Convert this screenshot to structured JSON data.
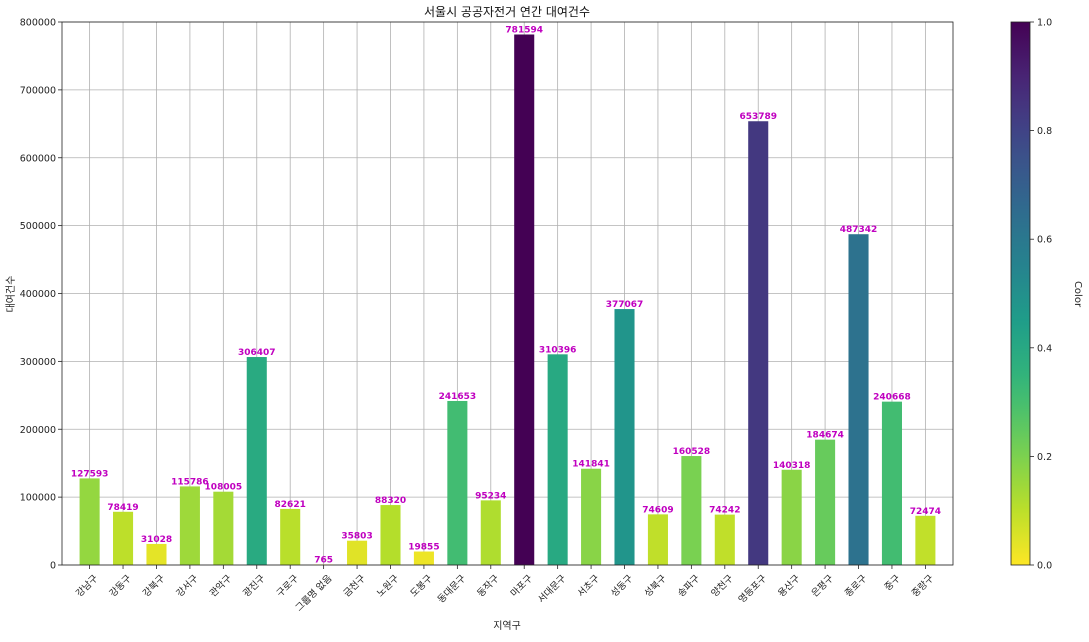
{
  "chart_data": {
    "type": "bar",
    "title": "서울시 공공자전거 연간 대여건수",
    "xlabel": "지역구",
    "ylabel": "대여건수",
    "ylim": [
      0,
      800000
    ],
    "yticks": [
      0,
      100000,
      200000,
      300000,
      400000,
      500000,
      600000,
      700000,
      800000
    ],
    "grid": true,
    "categories": [
      "강남구",
      "강동구",
      "강북구",
      "강서구",
      "관악구",
      "광진구",
      "구로구",
      "그룹명 없음",
      "금천구",
      "노원구",
      "도봉구",
      "동대문구",
      "동작구",
      "마포구",
      "서대문구",
      "서초구",
      "성동구",
      "성북구",
      "송파구",
      "양천구",
      "영등포구",
      "용산구",
      "은평구",
      "종로구",
      "중구",
      "중랑구"
    ],
    "values": [
      127593,
      78419,
      31028,
      115786,
      108005,
      306407,
      82621,
      765,
      35803,
      88320,
      19855,
      241653,
      95234,
      781594,
      310396,
      141841,
      377067,
      74609,
      160528,
      74242,
      653789,
      140318,
      184674,
      487342,
      240668,
      72474
    ],
    "data_label_color": "#c000c0",
    "colormap": "viridis_r",
    "colorbar": {
      "label": "Color",
      "range": [
        0.0,
        1.0
      ],
      "ticks": [
        "0.0",
        "0.2",
        "0.4",
        "0.6",
        "0.8",
        "1.0"
      ]
    }
  }
}
